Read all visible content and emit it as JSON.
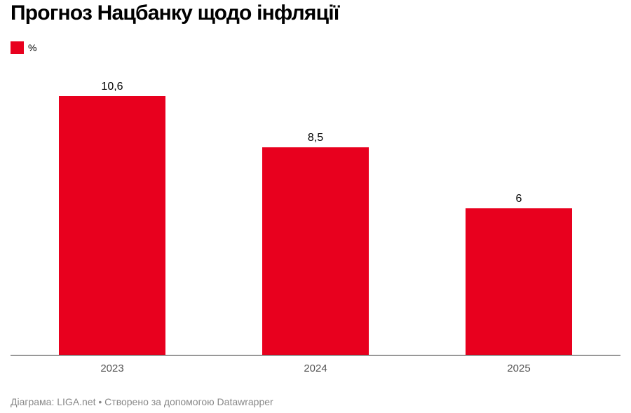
{
  "title": "Прогноз Нацбанку щодо інфляції",
  "legend": {
    "label": "%",
    "color": "#e8001e"
  },
  "footer": "Діаграма: LIGA.net • Створено за допомогою Datawrapper",
  "chart_data": {
    "type": "bar",
    "title": "Прогноз Нацбанку щодо інфляції",
    "categories": [
      "2023",
      "2024",
      "2025"
    ],
    "series": [
      {
        "name": "%",
        "values": [
          10.6,
          8.5,
          6
        ],
        "value_labels": [
          "10,6",
          "8,5",
          "6"
        ],
        "color": "#e8001e"
      }
    ],
    "ylim": [
      0,
      10.6
    ],
    "grid": false,
    "legend_position": "top-left",
    "xlabel": "",
    "ylabel": ""
  }
}
